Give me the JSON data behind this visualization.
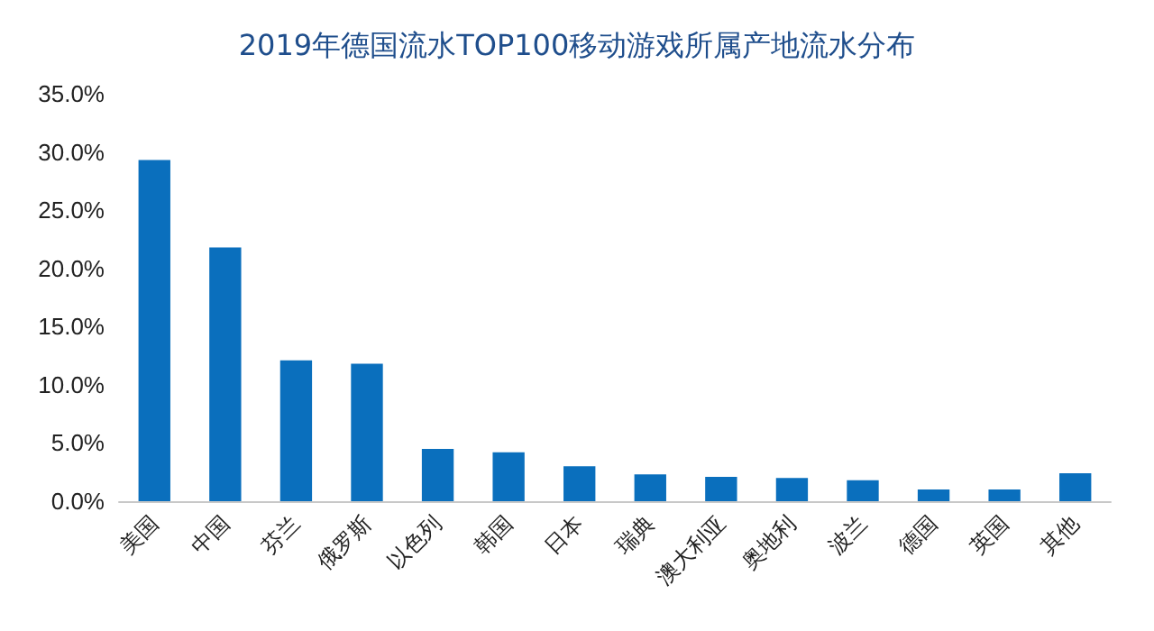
{
  "chart_data": {
    "type": "bar",
    "title": "2019年德国流水TOP100移动游戏所属产地流水分布",
    "categories": [
      "美国",
      "中国",
      "芬兰",
      "俄罗斯",
      "以色列",
      "韩国",
      "日本",
      "瑞典",
      "澳大利亚",
      "奥地利",
      "波兰",
      "德国",
      "英国",
      "其他"
    ],
    "values": [
      29.3,
      21.8,
      12.1,
      11.8,
      4.5,
      4.2,
      3.0,
      2.3,
      2.1,
      2.0,
      1.8,
      1.0,
      1.0,
      2.4
    ],
    "color": "#0a6fbd",
    "ylim": [
      0,
      35
    ],
    "yticks": [
      {
        "value": 0,
        "label": "0.0%"
      },
      {
        "value": 5,
        "label": "5.0%"
      },
      {
        "value": 10,
        "label": "10.0%"
      },
      {
        "value": 15,
        "label": "15.0%"
      },
      {
        "value": 20,
        "label": "20.0%"
      },
      {
        "value": 25,
        "label": "25.0%"
      },
      {
        "value": 30,
        "label": "30.0%"
      },
      {
        "value": 35,
        "label": "35.0%"
      }
    ],
    "grid": false
  }
}
